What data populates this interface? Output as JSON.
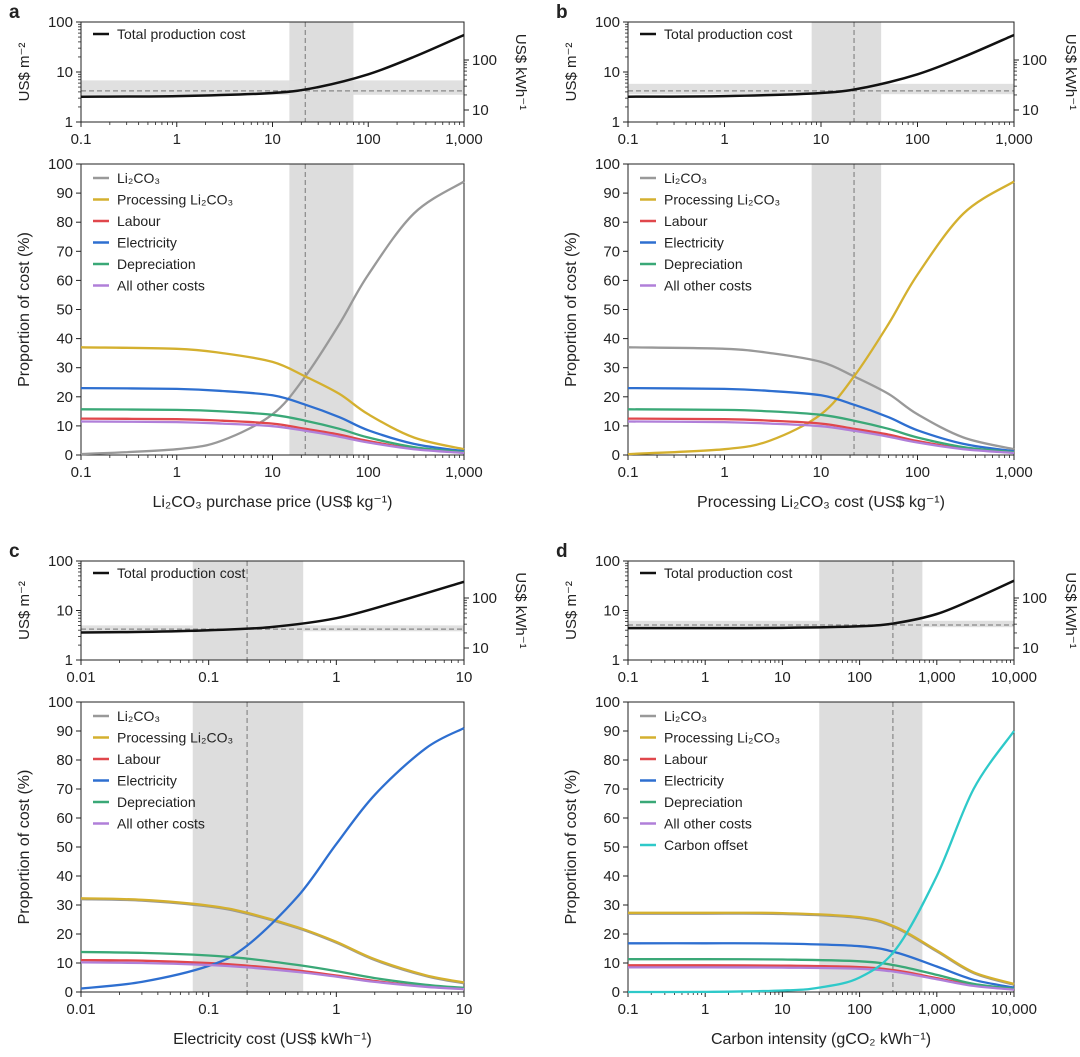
{
  "colors": {
    "total": "#111111",
    "Li2CO3": "#999999",
    "Processing": "#d4b02f",
    "Labour": "#e0474c",
    "Electricity": "#2e6fd0",
    "Depreciation": "#3aa877",
    "Other": "#b07fd9",
    "Carbon": "#2ec9c9",
    "shade": "#dddddd",
    "dashed": "#888888"
  },
  "common": {
    "top_y_left_label": "US$ m⁻²",
    "top_y_right_label": "US$ kWh⁻¹",
    "top_y_ticks": [
      "1",
      "10",
      "100"
    ],
    "top_y2_ticks": [
      "10",
      "100"
    ],
    "prop_ylabel": "Proportion of cost (%)",
    "prop_ticks": [
      "0",
      "10",
      "20",
      "30",
      "40",
      "50",
      "60",
      "70",
      "80",
      "90",
      "100"
    ],
    "total_legend": "Total production cost"
  },
  "chart_data": [
    {
      "panel": "a",
      "type": "line",
      "xscale": "log",
      "xlim": [
        0.1,
        1000
      ],
      "x_ticks": [
        "0.1",
        "1",
        "10",
        "100",
        "1,000"
      ],
      "xlabel": "Li₂CO₃ purchase price (US$ kg⁻¹)",
      "shade_range": [
        15,
        70
      ],
      "marker_x": 22,
      "total_band": [
        3.5,
        6.8
      ],
      "total_ref": 4.2,
      "total_cost": {
        "x": [
          0.1,
          1,
          10,
          30,
          100,
          300,
          1000
        ],
        "y": [
          3.2,
          3.3,
          3.8,
          5,
          9,
          20,
          55
        ]
      },
      "legend": [
        "Li₂CO₃",
        "Processing Li₂CO₃",
        "Labour",
        "Electricity",
        "Depreciation",
        "All other costs"
      ],
      "series_keys": [
        "Li2CO3",
        "Processing",
        "Labour",
        "Electricity",
        "Depreciation",
        "Other"
      ],
      "series": [
        {
          "name": "Li₂CO₃",
          "x": [
            0.1,
            1,
            3,
            10,
            22,
            50,
            100,
            300,
            1000
          ],
          "y": [
            0.3,
            2,
            5,
            14,
            27,
            45,
            62,
            83,
            94
          ]
        },
        {
          "name": "Processing Li₂CO₃",
          "x": [
            0.1,
            1,
            3,
            10,
            22,
            50,
            100,
            300,
            1000
          ],
          "y": [
            37,
            36.5,
            35,
            32,
            27,
            21,
            14,
            6,
            2
          ]
        },
        {
          "name": "Labour",
          "x": [
            0.1,
            1,
            3,
            10,
            22,
            50,
            100,
            300,
            1000
          ],
          "y": [
            12.5,
            12.3,
            11.8,
            10.8,
            9,
            7,
            4.8,
            2.2,
            0.8
          ]
        },
        {
          "name": "Electricity",
          "x": [
            0.1,
            1,
            3,
            10,
            22,
            50,
            100,
            300,
            1000
          ],
          "y": [
            23,
            22.7,
            22,
            20.5,
            17.3,
            13,
            8.5,
            3.8,
            1.3
          ]
        },
        {
          "name": "Depreciation",
          "x": [
            0.1,
            1,
            3,
            10,
            22,
            50,
            100,
            300,
            1000
          ],
          "y": [
            15.7,
            15.5,
            15,
            13.8,
            11.8,
            9,
            6,
            2.7,
            1
          ]
        },
        {
          "name": "All other costs",
          "x": [
            0.1,
            1,
            3,
            10,
            22,
            50,
            100,
            300,
            1000
          ],
          "y": [
            11.5,
            11.3,
            10.8,
            9.9,
            8.3,
            6.3,
            4.3,
            2,
            0.7
          ]
        }
      ]
    },
    {
      "panel": "b",
      "type": "line",
      "xscale": "log",
      "xlim": [
        0.1,
        1000
      ],
      "x_ticks": [
        "0.1",
        "1",
        "10",
        "100",
        "1,000"
      ],
      "xlabel": "Processing Li₂CO₃ cost (US$ kg⁻¹)",
      "shade_range": [
        8,
        42
      ],
      "marker_x": 22,
      "total_band": [
        3.6,
        5.8
      ],
      "total_ref": 4.2,
      "total_cost": {
        "x": [
          0.1,
          1,
          10,
          30,
          100,
          300,
          1000
        ],
        "y": [
          3.2,
          3.3,
          3.8,
          5,
          9,
          20,
          55
        ]
      },
      "legend": [
        "Li₂CO₃",
        "Processing Li₂CO₃",
        "Labour",
        "Electricity",
        "Depreciation",
        "All other costs"
      ],
      "series_keys": [
        "Li2CO3",
        "Processing",
        "Labour",
        "Electricity",
        "Depreciation",
        "Other"
      ],
      "series": [
        {
          "name": "Li₂CO₃",
          "x": [
            0.1,
            1,
            3,
            10,
            22,
            50,
            100,
            300,
            1000
          ],
          "y": [
            37,
            36.5,
            35,
            32,
            27,
            21,
            14,
            6,
            2
          ]
        },
        {
          "name": "Processing Li₂CO₃",
          "x": [
            0.1,
            1,
            3,
            10,
            22,
            50,
            100,
            300,
            1000
          ],
          "y": [
            0.3,
            2,
            5,
            14,
            27,
            45,
            62,
            83,
            94
          ]
        },
        {
          "name": "Labour",
          "x": [
            0.1,
            1,
            3,
            10,
            22,
            50,
            100,
            300,
            1000
          ],
          "y": [
            12.5,
            12.3,
            11.8,
            10.8,
            9,
            7,
            4.8,
            2.2,
            0.8
          ]
        },
        {
          "name": "Electricity",
          "x": [
            0.1,
            1,
            3,
            10,
            22,
            50,
            100,
            300,
            1000
          ],
          "y": [
            23,
            22.7,
            22,
            20.5,
            17.3,
            13,
            8.5,
            3.8,
            1.3
          ]
        },
        {
          "name": "Depreciation",
          "x": [
            0.1,
            1,
            3,
            10,
            22,
            50,
            100,
            300,
            1000
          ],
          "y": [
            15.7,
            15.5,
            15,
            13.8,
            11.8,
            9,
            6,
            2.7,
            1
          ]
        },
        {
          "name": "All other costs",
          "x": [
            0.1,
            1,
            3,
            10,
            22,
            50,
            100,
            300,
            1000
          ],
          "y": [
            11.5,
            11.3,
            10.8,
            9.9,
            8.3,
            6.3,
            4.3,
            2,
            0.7
          ]
        }
      ]
    },
    {
      "panel": "c",
      "type": "line",
      "xscale": "log",
      "xlim": [
        0.01,
        10
      ],
      "x_ticks": [
        "0.01",
        "0.1",
        "1",
        "10"
      ],
      "xlabel": "Electricity cost (US$ kWh⁻¹)",
      "shade_range": [
        0.075,
        0.55
      ],
      "marker_x": 0.2,
      "total_band": [
        3.8,
        5.0
      ],
      "total_ref": 4.2,
      "total_cost": {
        "x": [
          0.01,
          0.03,
          0.1,
          0.3,
          1,
          3,
          10
        ],
        "y": [
          3.6,
          3.7,
          4.0,
          4.6,
          7,
          15,
          38
        ]
      },
      "legend": [
        "Li₂CO₃",
        "Processing Li₂CO₃",
        "Labour",
        "Electricity",
        "Depreciation",
        "All other costs"
      ],
      "series_keys": [
        "Li2CO3",
        "Processing",
        "Labour",
        "Electricity",
        "Depreciation",
        "Other"
      ],
      "series": [
        {
          "name": "Li₂CO₃",
          "x": [
            0.01,
            0.03,
            0.1,
            0.2,
            0.5,
            1,
            2,
            5,
            10
          ],
          "y": [
            32,
            31.5,
            29.5,
            27,
            22,
            17,
            11,
            5.5,
            3
          ]
        },
        {
          "name": "Processing Li₂CO₃",
          "x": [
            0.01,
            0.03,
            0.1,
            0.2,
            0.5,
            1,
            2,
            5,
            10
          ],
          "y": [
            32.3,
            31.8,
            29.8,
            27.3,
            22.3,
            17.3,
            11.3,
            5.8,
            3.3
          ]
        },
        {
          "name": "Labour",
          "x": [
            0.01,
            0.03,
            0.1,
            0.2,
            0.5,
            1,
            2,
            5,
            10
          ],
          "y": [
            11,
            10.8,
            10,
            9.1,
            7.4,
            5.7,
            3.8,
            1.9,
            1.1
          ]
        },
        {
          "name": "Electricity",
          "x": [
            0.01,
            0.03,
            0.1,
            0.2,
            0.5,
            1,
            2,
            5,
            10
          ],
          "y": [
            1.2,
            3.5,
            9,
            16,
            33,
            51,
            68,
            84,
            91
          ]
        },
        {
          "name": "Depreciation",
          "x": [
            0.01,
            0.03,
            0.1,
            0.2,
            0.5,
            1,
            2,
            5,
            10
          ],
          "y": [
            13.8,
            13.5,
            12.6,
            11.5,
            9.3,
            7.2,
            4.8,
            2.5,
            1.4
          ]
        },
        {
          "name": "All other costs",
          "x": [
            0.01,
            0.03,
            0.1,
            0.2,
            0.5,
            1,
            2,
            5,
            10
          ],
          "y": [
            10.2,
            10,
            9.3,
            8.5,
            6.9,
            5.3,
            3.5,
            1.8,
            1
          ]
        }
      ]
    },
    {
      "panel": "d",
      "type": "line",
      "xscale": "log",
      "xlim": [
        0.1,
        10000
      ],
      "x_ticks": [
        "0.1",
        "1",
        "10",
        "100",
        "1,000",
        "10,000"
      ],
      "xlabel": "Carbon intensity (gCO₂ kWh⁻¹)",
      "shade_range": [
        30,
        650
      ],
      "marker_x": 270,
      "total_band": [
        4.6,
        6.2
      ],
      "total_ref": 5.1,
      "total_cost": {
        "x": [
          0.1,
          1,
          10,
          100,
          300,
          1000,
          3000,
          10000
        ],
        "y": [
          4.4,
          4.4,
          4.45,
          4.8,
          5.6,
          8.5,
          17,
          40
        ]
      },
      "legend": [
        "Li₂CO₃",
        "Processing Li₂CO₃",
        "Labour",
        "Electricity",
        "Depreciation",
        "All other costs",
        "Carbon offset"
      ],
      "series_keys": [
        "Li2CO3",
        "Processing",
        "Labour",
        "Electricity",
        "Depreciation",
        "Other",
        "Carbon"
      ],
      "series": [
        {
          "name": "Li₂CO₃",
          "x": [
            0.1,
            1,
            10,
            100,
            300,
            1000,
            3000,
            10000
          ],
          "y": [
            27,
            27,
            26.9,
            25.5,
            22,
            14,
            6.5,
            2.5
          ]
        },
        {
          "name": "Processing Li₂CO₃",
          "x": [
            0.1,
            1,
            10,
            100,
            300,
            1000,
            3000,
            10000
          ],
          "y": [
            27.3,
            27.3,
            27.2,
            25.8,
            22.3,
            14.3,
            6.8,
            2.8
          ]
        },
        {
          "name": "Labour",
          "x": [
            0.1,
            1,
            10,
            100,
            300,
            1000,
            3000,
            10000
          ],
          "y": [
            9.2,
            9.2,
            9.1,
            8.6,
            7.4,
            4.8,
            2.3,
            0.9
          ]
        },
        {
          "name": "Electricity",
          "x": [
            0.1,
            1,
            10,
            100,
            300,
            1000,
            3000,
            10000
          ],
          "y": [
            16.8,
            16.8,
            16.7,
            15.8,
            13.6,
            8.8,
            4.2,
            1.5
          ]
        },
        {
          "name": "Depreciation",
          "x": [
            0.1,
            1,
            10,
            100,
            300,
            1000,
            3000,
            10000
          ],
          "y": [
            11.3,
            11.3,
            11.2,
            10.6,
            9.1,
            5.9,
            2.8,
            1.1
          ]
        },
        {
          "name": "All other costs",
          "x": [
            0.1,
            1,
            10,
            100,
            300,
            1000,
            3000,
            10000
          ],
          "y": [
            8.5,
            8.5,
            8.4,
            8,
            6.9,
            4.4,
            2.1,
            0.8
          ]
        },
        {
          "name": "Carbon offset",
          "x": [
            0.1,
            1,
            10,
            30,
            100,
            300,
            1000,
            3000,
            10000
          ],
          "y": [
            0,
            0.05,
            0.5,
            1.5,
            5,
            15,
            40,
            70,
            90
          ]
        }
      ]
    }
  ]
}
